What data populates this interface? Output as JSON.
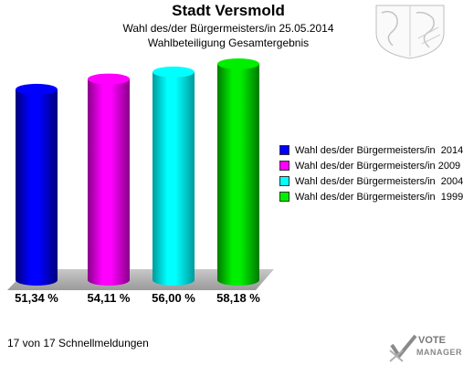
{
  "header": {
    "title": "Stadt Versmold",
    "subtitle1": "Wahl des/der Bürgermeisters/in  25.05.2014",
    "subtitle2": "Wahlbeteiligung Gesamtergebnis"
  },
  "footer": {
    "text": "17 von 17 Schnellmeldungen"
  },
  "logo": {
    "line1": "VOTE",
    "line2": "MANAGER"
  },
  "chart_data": {
    "type": "bar",
    "title": "Wahlbeteiligung Gesamtergebnis",
    "categories": [
      "2014",
      "2009",
      "2004",
      "1999"
    ],
    "values": [
      51.34,
      54.11,
      56.0,
      58.18
    ],
    "value_labels": [
      "51,34 %",
      "54,11 %",
      "56,00 %",
      "58,18 %"
    ],
    "series": [
      {
        "name": "Wahl des/der Bürgermeisters/in  2014",
        "value": 51.34,
        "color": "#0000ff",
        "dark": "#00007a"
      },
      {
        "name": "Wahl des/der Bürgermeisters/in 2009",
        "value": 54.11,
        "color": "#ff00ff",
        "dark": "#8a008a"
      },
      {
        "name": "Wahl des/der Bürgermeisters/in  2004",
        "value": 56.0,
        "color": "#00ffff",
        "dark": "#009a9a"
      },
      {
        "name": "Wahl des/der Bürgermeisters/in  1999",
        "value": 58.18,
        "color": "#00ee00",
        "dark": "#007a00"
      }
    ],
    "legend_position": "right",
    "grid": false,
    "xlabel": "",
    "ylabel": ""
  }
}
